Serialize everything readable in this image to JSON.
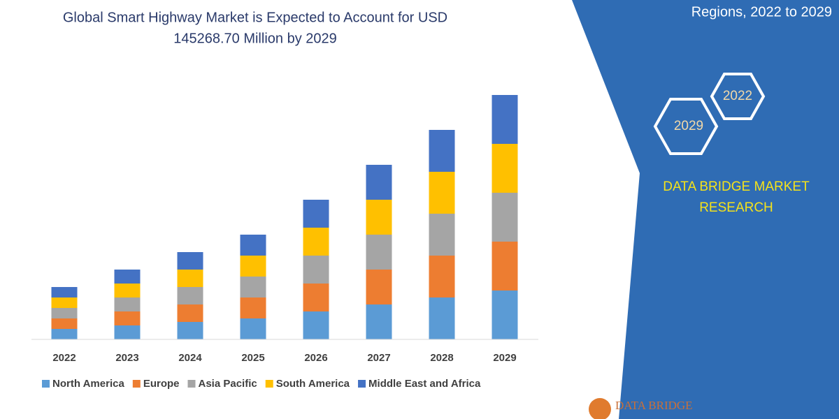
{
  "header": {
    "title_lines": [
      "Global Smart Highway Market is Expected to Account for USD",
      "145268.70 Million by 2029"
    ]
  },
  "chart_data": {
    "type": "bar",
    "stacked": true,
    "categories": [
      "2022",
      "2023",
      "2024",
      "2025",
      "2026",
      "2027",
      "2028",
      "2029"
    ],
    "series": [
      {
        "name": "North America",
        "color": "#5b9bd5",
        "values": [
          15,
          20,
          25,
          30,
          40,
          50,
          60,
          70
        ]
      },
      {
        "name": "Europe",
        "color": "#ed7d31",
        "values": [
          15,
          20,
          25,
          30,
          40,
          50,
          60,
          70
        ]
      },
      {
        "name": "Asia Pacific",
        "color": "#a5a5a5",
        "values": [
          15,
          20,
          25,
          30,
          40,
          50,
          60,
          70
        ]
      },
      {
        "name": "South America",
        "color": "#ffc000",
        "values": [
          15,
          20,
          25,
          30,
          40,
          50,
          60,
          70
        ]
      },
      {
        "name": "Middle East and Africa",
        "color": "#4472c4",
        "values": [
          15,
          20,
          25,
          30,
          40,
          50,
          60,
          70
        ]
      }
    ]
  },
  "side_panel": {
    "subtitle": "Regions, 2022 to 2029",
    "hexagons": [
      "2022",
      "2029"
    ],
    "brand_lines": [
      "DATA BRIDGE MARKET",
      "RESEARCH"
    ]
  },
  "logo": "DATA BRIDGE"
}
